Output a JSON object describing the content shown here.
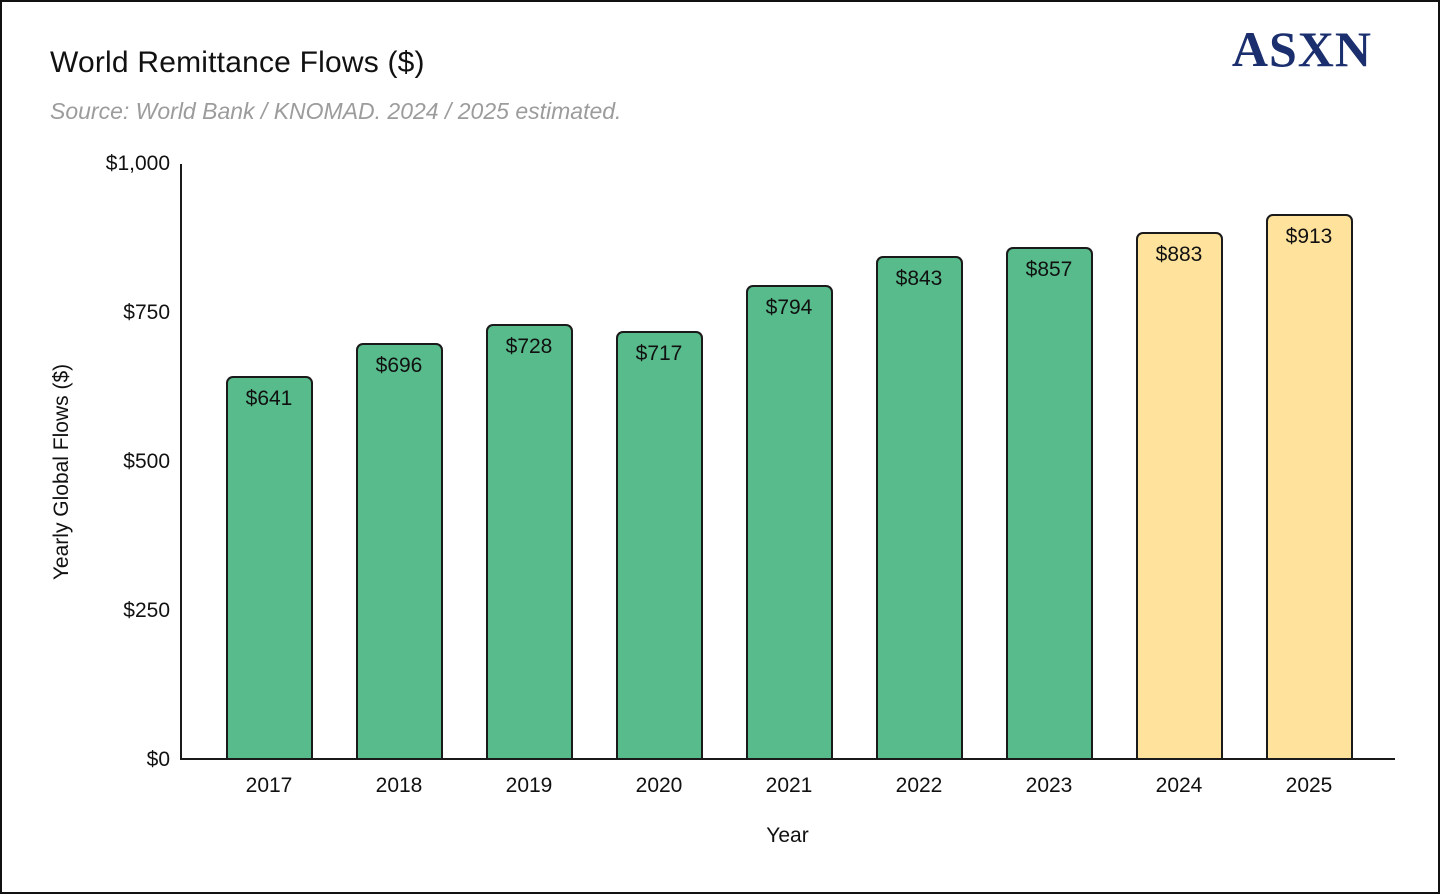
{
  "header": {
    "title": "World Remittance Flows ($)",
    "subtitle": "Source: World Bank / KNOMAD. 2024 / 2025 estimated.",
    "logo_text": "ASXN"
  },
  "colors": {
    "bar_green": "#57bb8b",
    "bar_yellow": "#ffe39c",
    "bar_border": "#1a1a1a",
    "logo_navy": "#1b2f6e",
    "subtitle_gray": "#9c9c9c"
  },
  "chart_data": {
    "type": "bar",
    "title": "World Remittance Flows ($)",
    "subtitle": "Source: World Bank / KNOMAD. 2024 / 2025 estimated.",
    "xlabel": "Year",
    "ylabel": "Yearly Global Flows ($)",
    "categories": [
      "2017",
      "2018",
      "2019",
      "2020",
      "2021",
      "2022",
      "2023",
      "2024",
      "2025"
    ],
    "values": [
      641,
      696,
      728,
      717,
      794,
      843,
      857,
      883,
      913
    ],
    "bar_labels": [
      "$641",
      "$696",
      "$728",
      "$717",
      "$794",
      "$843",
      "$857",
      "$883",
      "$913"
    ],
    "bar_colors": [
      "#57bb8b",
      "#57bb8b",
      "#57bb8b",
      "#57bb8b",
      "#57bb8b",
      "#57bb8b",
      "#57bb8b",
      "#ffe39c",
      "#ffe39c"
    ],
    "estimated_categories": [
      "2024",
      "2025"
    ],
    "ylim": [
      0,
      1000
    ],
    "yticks": [
      {
        "value": 1000,
        "label": "$1,000"
      },
      {
        "value": 750,
        "label": "$750"
      },
      {
        "value": 500,
        "label": "$500"
      },
      {
        "value": 250,
        "label": "$250"
      },
      {
        "value": 0,
        "label": "$0"
      }
    ],
    "grid": false,
    "legend": "none"
  }
}
